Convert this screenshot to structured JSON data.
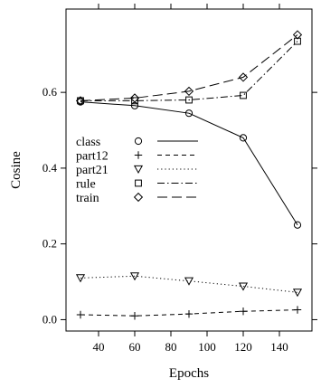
{
  "chart_data": {
    "type": "line",
    "title": "",
    "xlabel": "Epochs",
    "ylabel": "Cosine",
    "xlim": [
      22,
      158
    ],
    "ylim": [
      -0.03,
      0.82
    ],
    "x_ticks": [
      40,
      60,
      80,
      100,
      120,
      140
    ],
    "y_ticks": [
      0.0,
      0.2,
      0.4,
      0.6
    ],
    "x_tick_labels": [
      "40",
      "60",
      "80",
      "100",
      "120",
      "140"
    ],
    "y_tick_labels": [
      "0.0",
      "0.2",
      "0.4",
      "0.6"
    ],
    "grid": false,
    "legend_position": "middle-left",
    "x": [
      30,
      60,
      90,
      120,
      150
    ],
    "series": [
      {
        "name": "class",
        "marker": "circle",
        "line": "solid",
        "values": [
          0.575,
          0.565,
          0.545,
          0.48,
          0.25
        ]
      },
      {
        "name": "part12",
        "marker": "plus",
        "line": "dashed",
        "values": [
          0.013,
          0.01,
          0.015,
          0.022,
          0.026
        ]
      },
      {
        "name": "part21",
        "marker": "triangle-down",
        "line": "dotted",
        "values": [
          0.11,
          0.115,
          0.102,
          0.088,
          0.072
        ]
      },
      {
        "name": "rule",
        "marker": "square",
        "line": "dashdot",
        "values": [
          0.578,
          0.578,
          0.58,
          0.592,
          0.735
        ]
      },
      {
        "name": "train",
        "marker": "diamond",
        "line": "longdash",
        "values": [
          0.578,
          0.585,
          0.603,
          0.64,
          0.752
        ]
      }
    ],
    "colors": {
      "line": "#000000",
      "background": "#ffffff"
    }
  }
}
